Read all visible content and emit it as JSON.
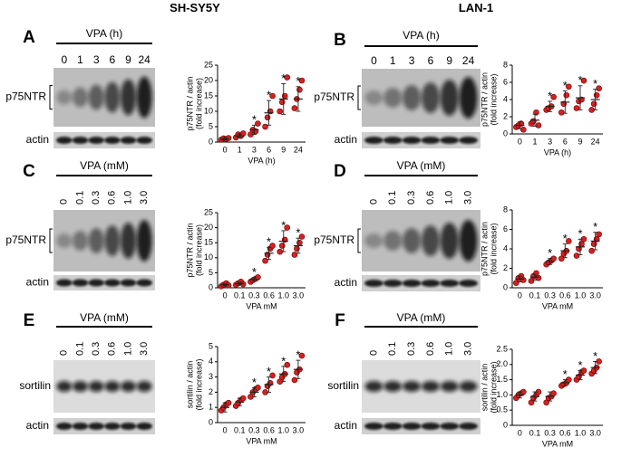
{
  "columns": [
    "SH-SY5Y",
    "LAN-1"
  ],
  "blots": [
    {
      "letter": "A",
      "treatment": "VPA (h)",
      "lanes": [
        "0",
        "1",
        "3",
        "6",
        "9",
        "24"
      ],
      "target": "p75NTR",
      "loading": "actin"
    },
    {
      "letter": "B",
      "treatment": "VPA (h)",
      "lanes": [
        "0",
        "1",
        "3",
        "6",
        "9",
        "24"
      ],
      "target": "p75NTR",
      "loading": "actin"
    },
    {
      "letter": "C",
      "treatment": "VPA (mM)",
      "lanes": [
        "0",
        "0.1",
        "0.3",
        "0.6",
        "1.0",
        "3.0"
      ],
      "target": "p75NTR",
      "loading": "actin"
    },
    {
      "letter": "D",
      "treatment": "VPA (mM)",
      "lanes": [
        "0",
        "0.1",
        "0.3",
        "0.6",
        "1.0",
        "3.0"
      ],
      "target": "p75NTR",
      "loading": "actin"
    },
    {
      "letter": "E",
      "treatment": "VPA (mM)",
      "lanes": [
        "0",
        "0.1",
        "0.3",
        "0.6",
        "1.0",
        "3.0"
      ],
      "target": "sortilin",
      "loading": "actin"
    },
    {
      "letter": "F",
      "treatment": "VPA (mM)",
      "lanes": [
        "0",
        "0.1",
        "0.3",
        "0.6",
        "1.0",
        "3.0"
      ],
      "target": "sortilin",
      "loading": "actin"
    }
  ],
  "chart_data": [
    {
      "type": "dotplot",
      "color": "#d92020",
      "y_label": [
        "p75NTR / actin",
        "(fold increase)"
      ],
      "x_label": "VPA (h)",
      "categories": [
        "0",
        "1",
        "3",
        "6",
        "9",
        "24"
      ],
      "points": [
        [
          0.8,
          1.2,
          1.0,
          1.3
        ],
        [
          1.5,
          2.5,
          2.0,
          2.8
        ],
        [
          2.5,
          4,
          3.5,
          6
        ],
        [
          5,
          8,
          10,
          15
        ],
        [
          10,
          13,
          15,
          21
        ],
        [
          11,
          14,
          17,
          20
        ]
      ],
      "means": [
        1,
        2,
        4,
        9.5,
        14,
        14
      ],
      "errors": [
        0.3,
        0.6,
        1.5,
        4,
        5,
        4
      ],
      "significance": [
        null,
        null,
        "*",
        "*",
        "*",
        "*"
      ],
      "ylim": [
        0,
        25
      ],
      "yticks": [
        0,
        5,
        10,
        15,
        20,
        25
      ]
    },
    {
      "type": "dotplot",
      "color": "#d92020",
      "y_label": [
        "p75NTR / actin",
        "(fold increase)"
      ],
      "x_label": "VPA (h)",
      "categories": [
        "0",
        "1",
        "3",
        "6",
        "9",
        "24"
      ],
      "points": [
        [
          0.8,
          1.0,
          1.2,
          0.5
        ],
        [
          1.2,
          1.5,
          2.5,
          1.0
        ],
        [
          2.8,
          3.0,
          3.2,
          4.3
        ],
        [
          2.5,
          3.5,
          4.5,
          5.5
        ],
        [
          3.0,
          3.8,
          4.0,
          6.2
        ],
        [
          2.8,
          3.5,
          4.5,
          5.3
        ]
      ],
      "means": [
        1,
        1.6,
        3.2,
        3.7,
        4.2,
        4
      ],
      "errors": [
        0.4,
        0.7,
        0.6,
        1.3,
        1.4,
        1.2
      ],
      "significance": [
        null,
        null,
        "*",
        "*",
        "*",
        "*"
      ],
      "ylim": [
        0,
        8
      ],
      "yticks": [
        0,
        2,
        4,
        6,
        8
      ]
    },
    {
      "type": "dotplot",
      "color": "#d92020",
      "y_label": [
        "p75NTR / actin",
        "(fold increase)"
      ],
      "x_label": "VPA mM",
      "categories": [
        "0",
        "0.1",
        "0.3",
        "0.6",
        "1.0",
        "3.0"
      ],
      "points": [
        [
          0.5,
          1,
          1.5,
          0.8
        ],
        [
          1,
          1.5,
          2,
          1.2
        ],
        [
          2,
          2.5,
          3,
          3.5
        ],
        [
          9,
          11,
          13,
          14
        ],
        [
          12,
          14,
          16,
          20
        ],
        [
          11,
          13,
          15,
          17
        ]
      ],
      "means": [
        1,
        1.4,
        2.8,
        11.5,
        15.5,
        14
      ],
      "errors": [
        0.4,
        0.4,
        0.6,
        2,
        3.5,
        2.5
      ],
      "significance": [
        null,
        null,
        "*",
        "*",
        "*",
        "*"
      ],
      "ylim": [
        0,
        25
      ],
      "yticks": [
        0,
        5,
        10,
        15,
        20,
        25
      ]
    },
    {
      "type": "dotplot",
      "color": "#d92020",
      "y_label": [
        "p75NTR / actin",
        "(fold increase)"
      ],
      "x_label": "VPA mM",
      "categories": [
        "0",
        "0.1",
        "0.3",
        "0.6",
        "1.0",
        "3.0"
      ],
      "points": [
        [
          0.5,
          1,
          1.2,
          0.8
        ],
        [
          0.7,
          1.2,
          1.5,
          1.0
        ],
        [
          2.4,
          2.6,
          2.8,
          3.0
        ],
        [
          3,
          3.5,
          3.8,
          4.8
        ],
        [
          3.3,
          4,
          4.5,
          5
        ],
        [
          3.8,
          4.5,
          5,
          5.5
        ]
      ],
      "means": [
        0.9,
        1.1,
        2.7,
        3.8,
        4.2,
        4.8
      ],
      "errors": [
        0.3,
        0.3,
        0.3,
        0.7,
        0.8,
        0.9
      ],
      "significance": [
        null,
        null,
        "*",
        "*",
        "*",
        "*"
      ],
      "ylim": [
        0,
        8
      ],
      "yticks": [
        0,
        2,
        4,
        6,
        8
      ]
    },
    {
      "type": "dotplot",
      "color": "#d92020",
      "y_label": [
        "sortilin / actin",
        "(fold increase)"
      ],
      "x_label": "VPA mM",
      "categories": [
        "0",
        "0.1",
        "0.3",
        "0.6",
        "1.0",
        "3.0"
      ],
      "points": [
        [
          0.8,
          1,
          1.2,
          1.3
        ],
        [
          1.1,
          1.3,
          1.5,
          1.6
        ],
        [
          1.7,
          2,
          2.2,
          2.3
        ],
        [
          2,
          2.4,
          2.6,
          3.1
        ],
        [
          2.7,
          3,
          3.2,
          3.8
        ],
        [
          2.8,
          3.3,
          3.5,
          4.4
        ]
      ],
      "means": [
        1,
        1.35,
        2,
        2.5,
        3.2,
        3.5
      ],
      "errors": [
        0.3,
        0.25,
        0.3,
        0.5,
        0.5,
        0.6
      ],
      "significance": [
        null,
        null,
        "*",
        "*",
        "*",
        "*"
      ],
      "ylim": [
        0,
        5
      ],
      "yticks": [
        0,
        1,
        2,
        3,
        4,
        5
      ]
    },
    {
      "type": "dotplot",
      "color": "#d92020",
      "y_label": [
        "sortilin / actin",
        "(fold increase)"
      ],
      "x_label": "VPA mM",
      "categories": [
        "0",
        "0.1",
        "0.3",
        "0.6",
        "1.0",
        "3.0"
      ],
      "points": [
        [
          0.9,
          1.0,
          1.05,
          1.1
        ],
        [
          0.75,
          0.9,
          1.0,
          1.1
        ],
        [
          0.75,
          0.9,
          0.95,
          1.05
        ],
        [
          1.3,
          1.35,
          1.4,
          1.5
        ],
        [
          1.5,
          1.6,
          1.75,
          1.8
        ],
        [
          1.7,
          1.8,
          1.9,
          2.1
        ]
      ],
      "means": [
        1,
        0.95,
        0.95,
        1.4,
        1.65,
        1.9
      ],
      "errors": [
        0.1,
        0.15,
        0.15,
        0.1,
        0.15,
        0.2
      ],
      "significance": [
        null,
        null,
        null,
        "*",
        "*",
        "*"
      ],
      "ylim": [
        0,
        2.5
      ],
      "yticks": [
        0,
        0.5,
        {
          "value": 1,
          "label": "1.0"
        },
        1.5,
        {
          "value": 2,
          "label": "2.0"
        },
        2.5
      ]
    }
  ]
}
